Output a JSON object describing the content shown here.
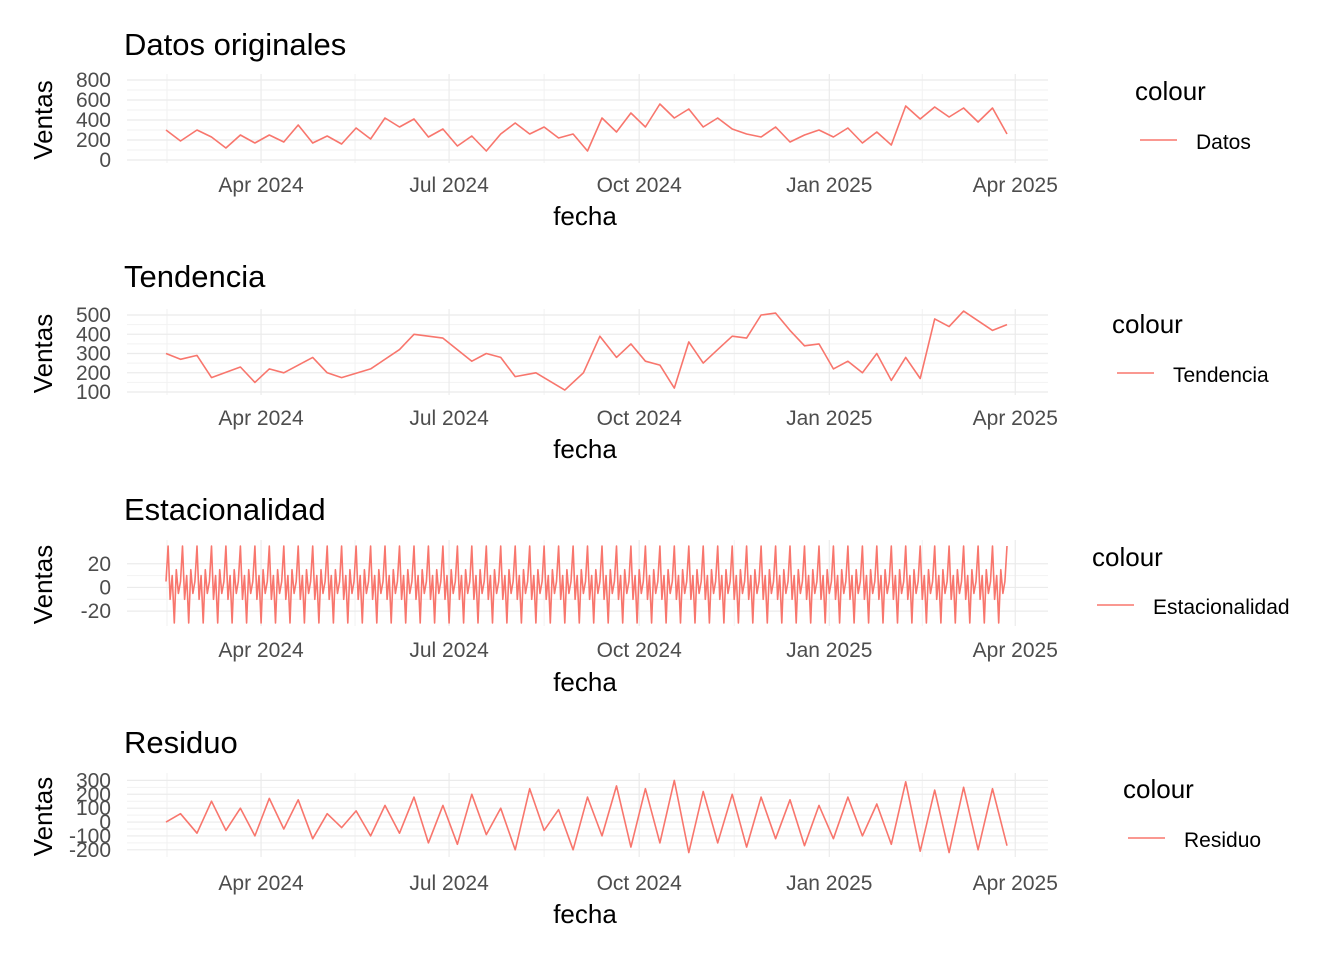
{
  "chart_data": [
    {
      "type": "line",
      "title": "Datos originales",
      "xlabel": "fecha",
      "ylabel": "Ventas",
      "x_range": [
        "2024-02-15",
        "2025-03-28"
      ],
      "x_ticks": [
        "Apr 2024",
        "Jul 2024",
        "Oct 2024",
        "Jan 2025",
        "Apr 2025"
      ],
      "y_ticks": [
        0,
        200,
        400,
        600,
        800
      ],
      "ylim": [
        0,
        800
      ],
      "legend_title": "colour",
      "legend_position": "right",
      "series": [
        {
          "name": "Datos",
          "color": "#F8766D",
          "points": [
            [
              "2024-02-15",
              300
            ],
            [
              "2024-02-22",
              190
            ],
            [
              "2024-03-01",
              300
            ],
            [
              "2024-03-08",
              230
            ],
            [
              "2024-03-15",
              120
            ],
            [
              "2024-03-22",
              250
            ],
            [
              "2024-03-29",
              170
            ],
            [
              "2024-04-05",
              250
            ],
            [
              "2024-04-12",
              180
            ],
            [
              "2024-04-19",
              350
            ],
            [
              "2024-04-26",
              170
            ],
            [
              "2024-05-03",
              240
            ],
            [
              "2024-05-10",
              160
            ],
            [
              "2024-05-17",
              320
            ],
            [
              "2024-05-24",
              210
            ],
            [
              "2024-05-31",
              420
            ],
            [
              "2024-06-07",
              330
            ],
            [
              "2024-06-14",
              410
            ],
            [
              "2024-06-21",
              230
            ],
            [
              "2024-06-28",
              310
            ],
            [
              "2024-07-05",
              140
            ],
            [
              "2024-07-12",
              240
            ],
            [
              "2024-07-19",
              90
            ],
            [
              "2024-07-26",
              260
            ],
            [
              "2024-08-02",
              370
            ],
            [
              "2024-08-09",
              260
            ],
            [
              "2024-08-16",
              330
            ],
            [
              "2024-08-23",
              220
            ],
            [
              "2024-08-30",
              260
            ],
            [
              "2024-09-06",
              90
            ],
            [
              "2024-09-13",
              420
            ],
            [
              "2024-09-20",
              280
            ],
            [
              "2024-09-27",
              470
            ],
            [
              "2024-10-04",
              330
            ],
            [
              "2024-10-11",
              560
            ],
            [
              "2024-10-18",
              420
            ],
            [
              "2024-10-25",
              510
            ],
            [
              "2024-11-01",
              330
            ],
            [
              "2024-11-08",
              420
            ],
            [
              "2024-11-15",
              310
            ],
            [
              "2024-11-22",
              260
            ],
            [
              "2024-11-29",
              230
            ],
            [
              "2024-12-06",
              330
            ],
            [
              "2024-12-13",
              180
            ],
            [
              "2024-12-20",
              250
            ],
            [
              "2024-12-27",
              300
            ],
            [
              "2025-01-03",
              230
            ],
            [
              "2025-01-10",
              320
            ],
            [
              "2025-01-17",
              170
            ],
            [
              "2025-01-24",
              280
            ],
            [
              "2025-01-31",
              150
            ],
            [
              "2025-02-07",
              540
            ],
            [
              "2025-02-14",
              410
            ],
            [
              "2025-02-21",
              530
            ],
            [
              "2025-02-28",
              430
            ],
            [
              "2025-03-07",
              520
            ],
            [
              "2025-03-14",
              380
            ],
            [
              "2025-03-21",
              520
            ],
            [
              "2025-03-28",
              260
            ]
          ]
        }
      ]
    },
    {
      "type": "line",
      "title": "Tendencia",
      "xlabel": "fecha",
      "ylabel": "Ventas",
      "x_range": [
        "2024-02-15",
        "2025-03-28"
      ],
      "x_ticks": [
        "Apr 2024",
        "Jul 2024",
        "Oct 2024",
        "Jan 2025",
        "Apr 2025"
      ],
      "y_ticks": [
        100,
        200,
        300,
        400,
        500
      ],
      "ylim": [
        100,
        500
      ],
      "legend_title": "colour",
      "legend_position": "right",
      "series": [
        {
          "name": "Tendencia",
          "color": "#F8766D",
          "points": [
            [
              "2024-02-15",
              300
            ],
            [
              "2024-02-22",
              270
            ],
            [
              "2024-03-01",
              290
            ],
            [
              "2024-03-08",
              175
            ],
            [
              "2024-03-22",
              230
            ],
            [
              "2024-03-29",
              150
            ],
            [
              "2024-04-05",
              220
            ],
            [
              "2024-04-12",
              200
            ],
            [
              "2024-04-26",
              280
            ],
            [
              "2024-05-03",
              200
            ],
            [
              "2024-05-10",
              175
            ],
            [
              "2024-05-24",
              220
            ],
            [
              "2024-06-07",
              320
            ],
            [
              "2024-06-14",
              400
            ],
            [
              "2024-06-28",
              380
            ],
            [
              "2024-07-12",
              260
            ],
            [
              "2024-07-19",
              300
            ],
            [
              "2024-07-26",
              280
            ],
            [
              "2024-08-02",
              180
            ],
            [
              "2024-08-12",
              200
            ],
            [
              "2024-08-26",
              110
            ],
            [
              "2024-09-04",
              200
            ],
            [
              "2024-09-12",
              390
            ],
            [
              "2024-09-20",
              280
            ],
            [
              "2024-09-27",
              350
            ],
            [
              "2024-10-04",
              260
            ],
            [
              "2024-10-11",
              240
            ],
            [
              "2024-10-18",
              120
            ],
            [
              "2024-10-25",
              360
            ],
            [
              "2024-11-01",
              250
            ],
            [
              "2024-11-08",
              320
            ],
            [
              "2024-11-15",
              390
            ],
            [
              "2024-11-22",
              380
            ],
            [
              "2024-11-29",
              500
            ],
            [
              "2024-12-06",
              510
            ],
            [
              "2024-12-13",
              420
            ],
            [
              "2024-12-20",
              340
            ],
            [
              "2024-12-27",
              350
            ],
            [
              "2025-01-03",
              220
            ],
            [
              "2025-01-10",
              260
            ],
            [
              "2025-01-17",
              200
            ],
            [
              "2025-01-24",
              300
            ],
            [
              "2025-01-31",
              160
            ],
            [
              "2025-02-07",
              280
            ],
            [
              "2025-02-14",
              170
            ],
            [
              "2025-02-21",
              480
            ],
            [
              "2025-02-28",
              440
            ],
            [
              "2025-03-07",
              520
            ],
            [
              "2025-03-14",
              470
            ],
            [
              "2025-03-21",
              420
            ],
            [
              "2025-03-28",
              450
            ]
          ]
        }
      ]
    },
    {
      "type": "line",
      "title": "Estacionalidad",
      "xlabel": "fecha",
      "ylabel": "Ventas",
      "x_range": [
        "2024-02-15",
        "2025-03-28"
      ],
      "x_ticks": [
        "Apr 2024",
        "Jul 2024",
        "Oct 2024",
        "Jan 2025",
        "Apr 2025"
      ],
      "y_ticks": [
        -20,
        0,
        20
      ],
      "ylim": [
        -30,
        35
      ],
      "legend_title": "colour",
      "legend_position": "right",
      "series": [
        {
          "name": "Estacionalidad",
          "color": "#F8766D",
          "pattern": "weekly repeating cycle with amplitude from about -30 to 35 across the full date range",
          "weekly_cycle": [
            5,
            35,
            -10,
            10,
            -30,
            15,
            -5
          ]
        }
      ]
    },
    {
      "type": "line",
      "title": "Residuo",
      "xlabel": "fecha",
      "ylabel": "Ventas",
      "x_range": [
        "2024-02-15",
        "2025-03-28"
      ],
      "x_ticks": [
        "Apr 2024",
        "Jul 2024",
        "Oct 2024",
        "Jan 2025",
        "Apr 2025"
      ],
      "y_ticks": [
        -200,
        -100,
        0,
        100,
        200,
        300
      ],
      "ylim": [
        -230,
        310
      ],
      "legend_title": "colour",
      "legend_position": "right",
      "series": [
        {
          "name": "Residuo",
          "color": "#F8766D",
          "points": [
            [
              "2024-02-15",
              0
            ],
            [
              "2024-02-22",
              60
            ],
            [
              "2024-03-01",
              -80
            ],
            [
              "2024-03-08",
              150
            ],
            [
              "2024-03-15",
              -60
            ],
            [
              "2024-03-22",
              100
            ],
            [
              "2024-03-29",
              -100
            ],
            [
              "2024-04-05",
              170
            ],
            [
              "2024-04-12",
              -50
            ],
            [
              "2024-04-19",
              160
            ],
            [
              "2024-04-26",
              -120
            ],
            [
              "2024-05-03",
              60
            ],
            [
              "2024-05-10",
              -40
            ],
            [
              "2024-05-17",
              80
            ],
            [
              "2024-05-24",
              -100
            ],
            [
              "2024-05-31",
              120
            ],
            [
              "2024-06-07",
              -80
            ],
            [
              "2024-06-14",
              180
            ],
            [
              "2024-06-21",
              -150
            ],
            [
              "2024-06-28",
              120
            ],
            [
              "2024-07-05",
              -160
            ],
            [
              "2024-07-12",
              200
            ],
            [
              "2024-07-19",
              -90
            ],
            [
              "2024-07-26",
              100
            ],
            [
              "2024-08-02",
              -200
            ],
            [
              "2024-08-09",
              240
            ],
            [
              "2024-08-16",
              -60
            ],
            [
              "2024-08-23",
              90
            ],
            [
              "2024-08-30",
              -200
            ],
            [
              "2024-09-06",
              180
            ],
            [
              "2024-09-13",
              -100
            ],
            [
              "2024-09-20",
              260
            ],
            [
              "2024-09-27",
              -180
            ],
            [
              "2024-10-04",
              240
            ],
            [
              "2024-10-11",
              -150
            ],
            [
              "2024-10-18",
              300
            ],
            [
              "2024-10-25",
              -220
            ],
            [
              "2024-11-01",
              220
            ],
            [
              "2024-11-08",
              -150
            ],
            [
              "2024-11-15",
              200
            ],
            [
              "2024-11-22",
              -180
            ],
            [
              "2024-11-29",
              180
            ],
            [
              "2024-12-06",
              -120
            ],
            [
              "2024-12-13",
              160
            ],
            [
              "2024-12-20",
              -170
            ],
            [
              "2024-12-27",
              120
            ],
            [
              "2025-01-03",
              -120
            ],
            [
              "2025-01-10",
              180
            ],
            [
              "2025-01-17",
              -100
            ],
            [
              "2025-01-24",
              130
            ],
            [
              "2025-01-31",
              -160
            ],
            [
              "2025-02-07",
              290
            ],
            [
              "2025-02-14",
              -210
            ],
            [
              "2025-02-21",
              230
            ],
            [
              "2025-02-28",
              -220
            ],
            [
              "2025-03-07",
              250
            ],
            [
              "2025-03-14",
              -200
            ],
            [
              "2025-03-21",
              240
            ],
            [
              "2025-03-28",
              -170
            ]
          ]
        }
      ]
    }
  ]
}
